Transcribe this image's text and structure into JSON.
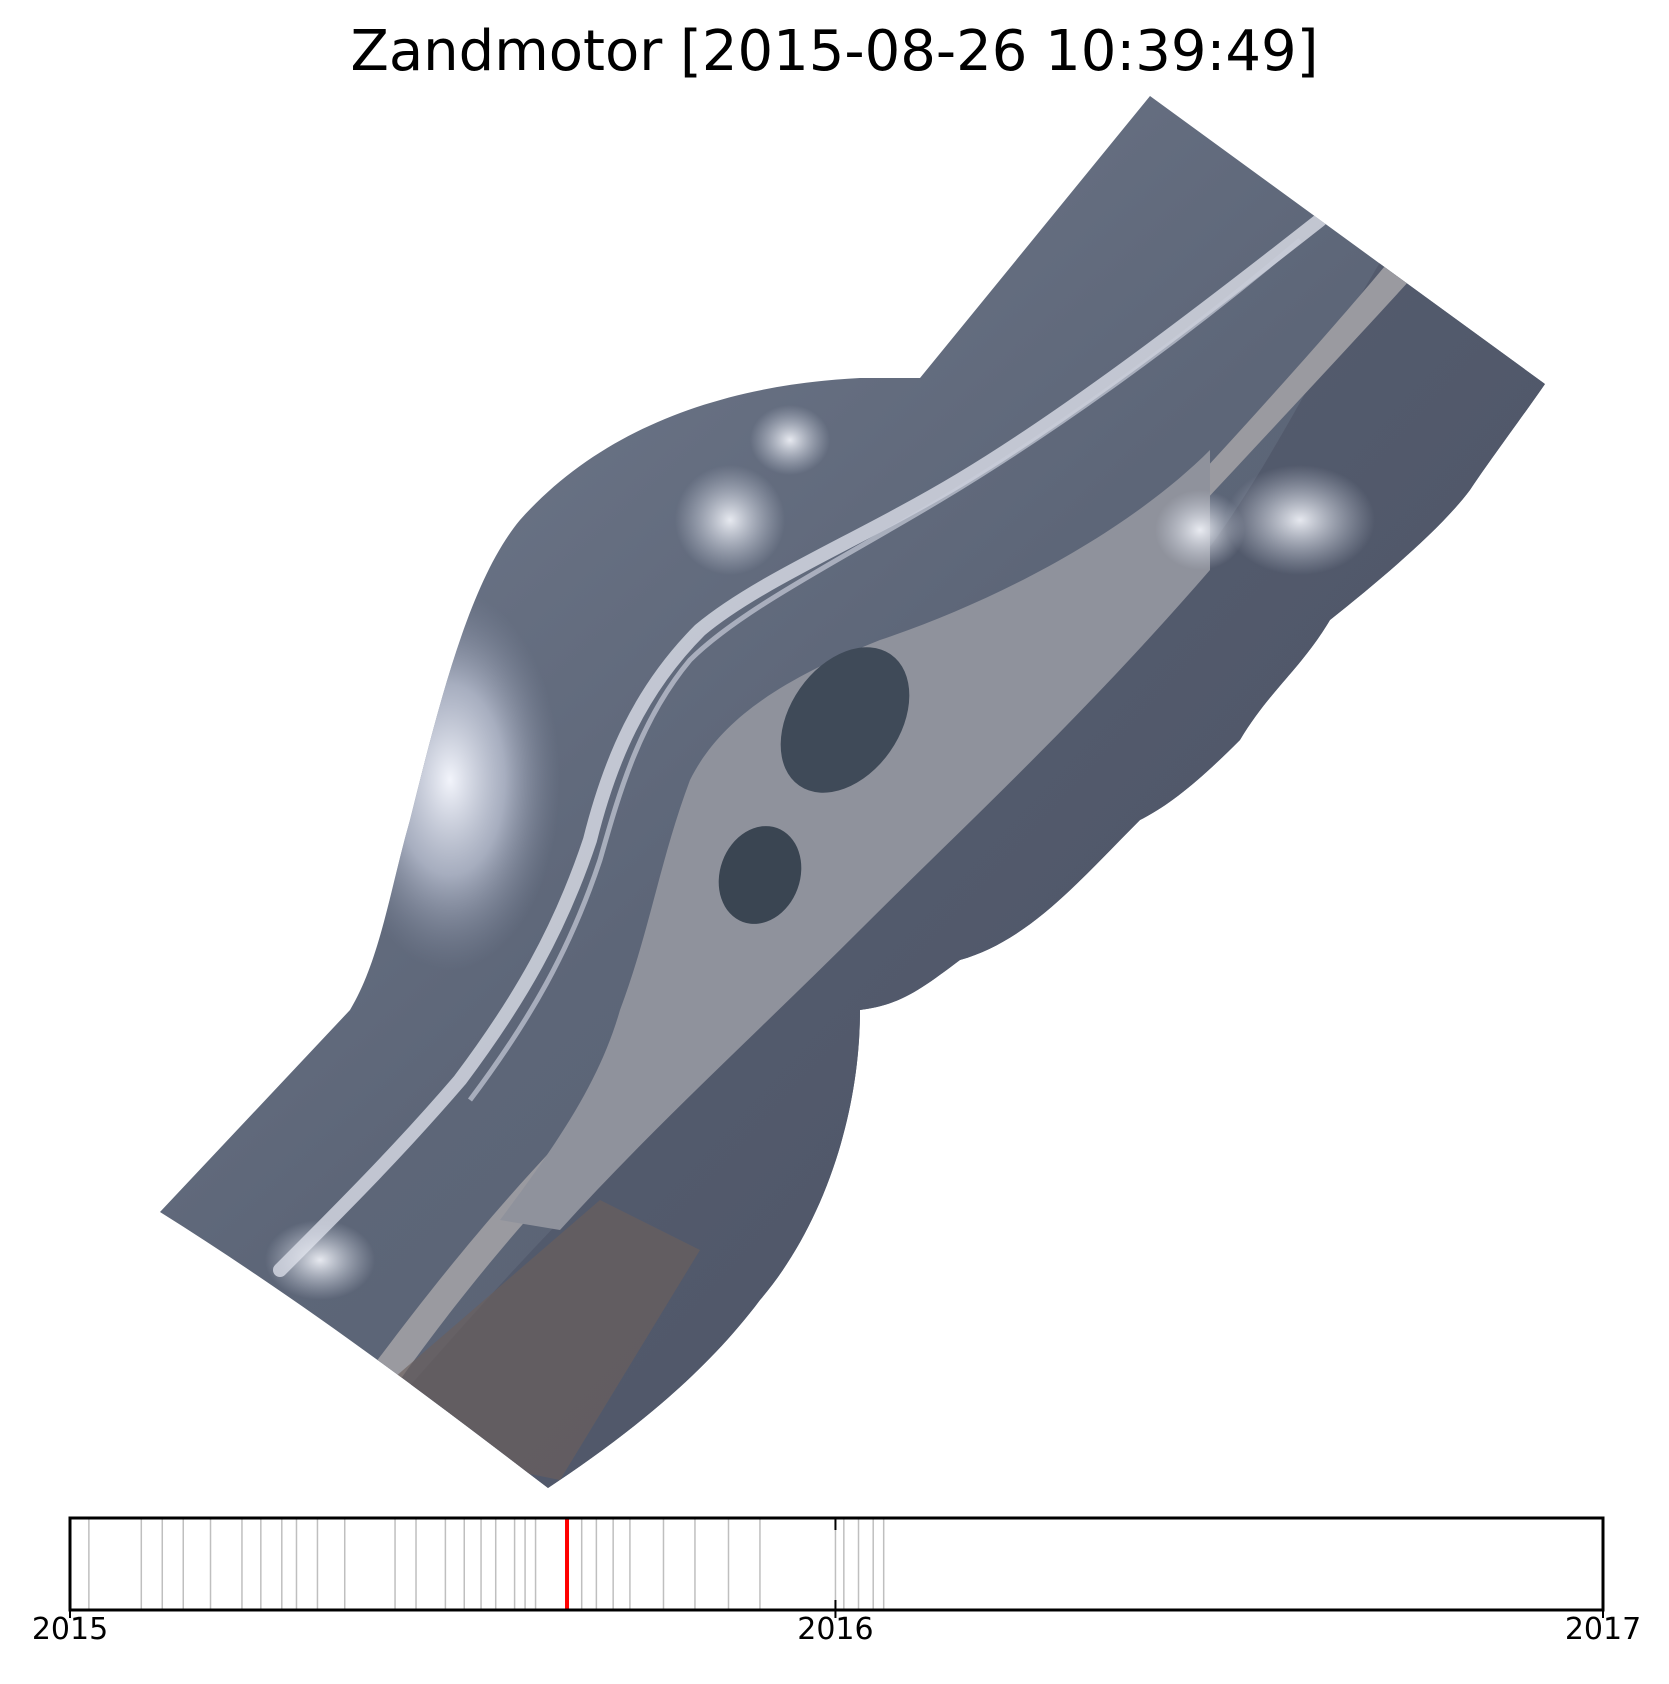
{
  "figure": {
    "title": "Zandmotor [2015-08-26 10:39:49]"
  },
  "chart_data": {
    "type": "timeline",
    "x_range": [
      "2015-01-01",
      "2017-01-01"
    ],
    "tick_labels": [
      "2015",
      "2016",
      "2017"
    ],
    "tick_values": [
      "2015-01-01",
      "2016-01-01",
      "2017-01-01"
    ],
    "current": "2015-08-26",
    "current_color": "#ff0000",
    "observations": [
      "2015-01-10",
      "2015-02-04",
      "2015-02-14",
      "2015-02-24",
      "2015-03-09",
      "2015-03-24",
      "2015-04-02",
      "2015-04-12",
      "2015-04-19",
      "2015-04-29",
      "2015-05-12",
      "2015-06-05",
      "2015-06-15",
      "2015-06-29",
      "2015-07-08",
      "2015-07-16",
      "2015-07-23",
      "2015-08-01",
      "2015-08-06",
      "2015-08-11",
      "2015-08-26",
      "2015-09-02",
      "2015-09-09",
      "2015-09-17",
      "2015-09-25",
      "2015-10-11",
      "2015-10-26",
      "2015-11-11",
      "2015-11-26",
      "2016-01-01",
      "2016-01-05",
      "2016-01-12",
      "2016-01-19",
      "2016-01-24"
    ],
    "observation_color": "#bfbfbf"
  }
}
